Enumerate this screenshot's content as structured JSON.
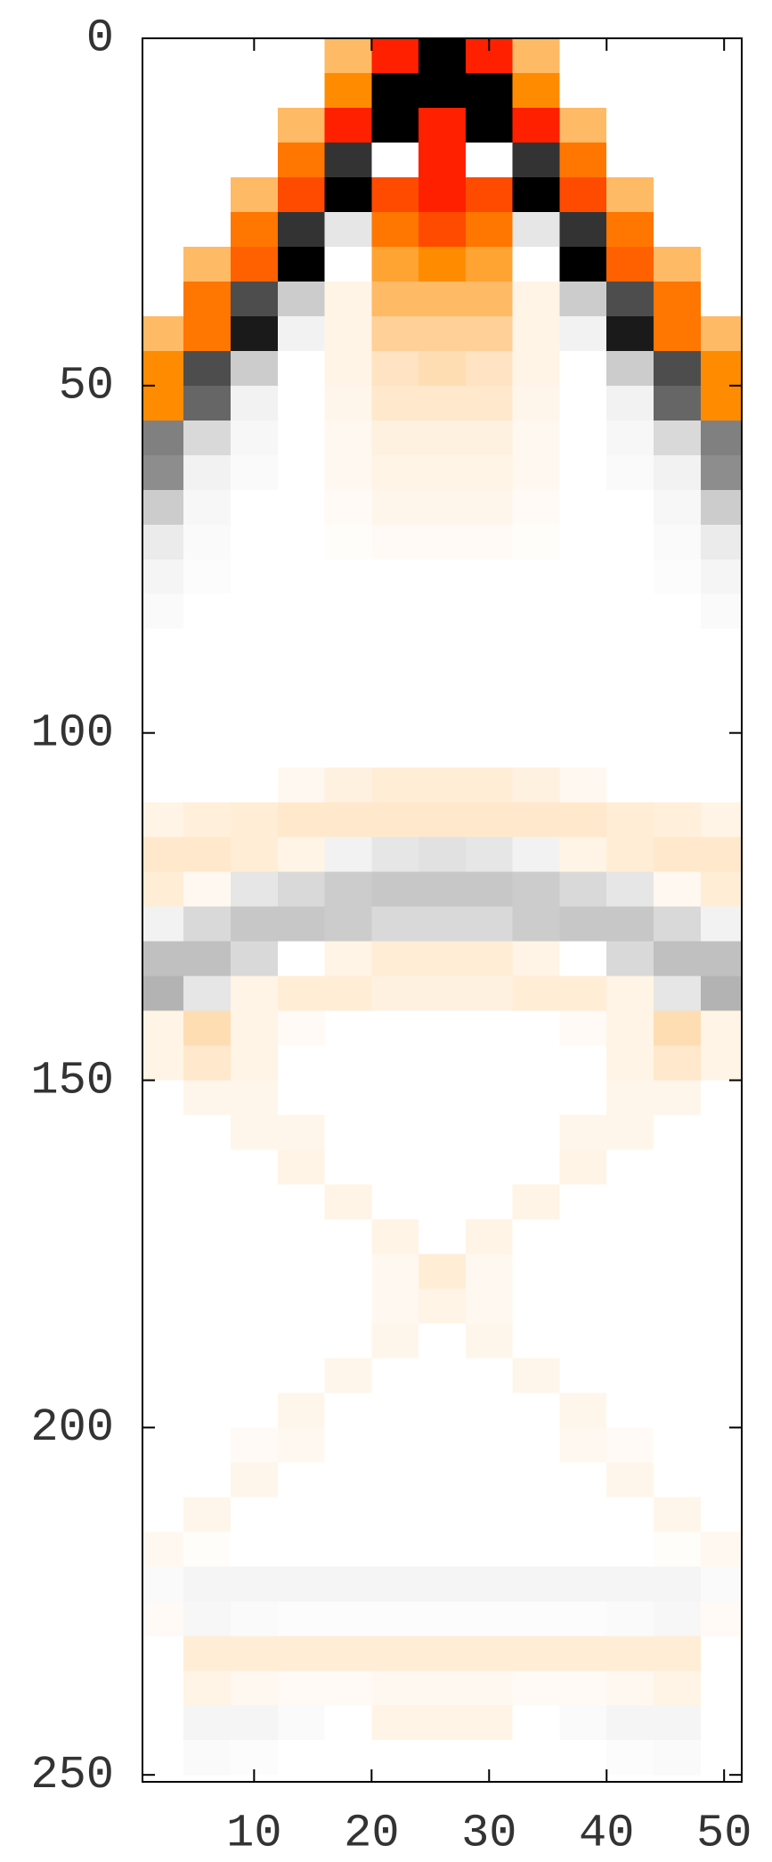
{
  "chart_data": {
    "type": "heatmap",
    "x": [
      2,
      6,
      10,
      14,
      18,
      22,
      26,
      30,
      34,
      38,
      42,
      46,
      50
    ],
    "y": [
      2.5,
      7.5,
      12.5,
      17.5,
      22.5,
      27.5,
      32.5,
      37.5,
      42.5,
      47.5,
      52.5,
      57.5,
      62.5,
      67.5,
      72.5,
      77.5,
      82.5,
      87.5,
      92.5,
      97.5,
      102.5,
      107.5,
      112.5,
      117.5,
      122.5,
      127.5,
      132.5,
      137.5,
      142.5,
      147.5,
      152.5,
      157.5,
      162.5,
      167.5,
      172.5,
      177.5,
      182.5,
      187.5,
      192.5,
      197.5,
      202.5,
      207.5,
      212.5,
      217.5,
      222.5,
      227.5,
      232.5,
      237.5,
      242.5,
      247.5
    ],
    "z": [
      [
        0,
        0,
        0,
        0,
        -0.3,
        -1,
        1,
        -1,
        -0.3,
        0,
        0,
        0,
        0
      ],
      [
        0,
        0,
        0,
        0,
        -0.5,
        1,
        1,
        1,
        -0.5,
        0,
        0,
        0,
        0
      ],
      [
        0,
        0,
        0,
        -0.3,
        -1,
        1,
        -1,
        1,
        -1,
        -0.3,
        0,
        0,
        0
      ],
      [
        0,
        0,
        0,
        -0.6,
        0.8,
        0,
        -1,
        0,
        0.8,
        -0.6,
        0,
        0,
        0
      ],
      [
        0,
        0,
        -0.3,
        -0.8,
        1,
        -0.8,
        -1,
        -0.8,
        1,
        -0.8,
        -0.3,
        0,
        0
      ],
      [
        0,
        0,
        -0.6,
        0.8,
        0.1,
        -0.6,
        -0.8,
        -0.6,
        0.1,
        0.8,
        -0.6,
        0,
        0
      ],
      [
        0,
        -0.3,
        -0.7,
        1,
        0,
        -0.4,
        -0.5,
        -0.4,
        0,
        1,
        -0.7,
        -0.3,
        0
      ],
      [
        0,
        -0.6,
        0.7,
        0.2,
        -0.05,
        -0.3,
        -0.3,
        -0.3,
        -0.05,
        0.2,
        0.7,
        -0.6,
        0
      ],
      [
        -0.3,
        -0.6,
        0.9,
        0.05,
        -0.05,
        -0.2,
        -0.2,
        -0.2,
        -0.05,
        0.05,
        0.9,
        -0.6,
        -0.3
      ],
      [
        -0.5,
        0.7,
        0.2,
        0,
        -0.05,
        -0.12,
        -0.15,
        -0.12,
        -0.05,
        0,
        0.2,
        0.7,
        -0.5
      ],
      [
        -0.5,
        0.6,
        0.05,
        0,
        -0.04,
        -0.1,
        -0.1,
        -0.1,
        -0.04,
        0,
        0.05,
        0.6,
        -0.5
      ],
      [
        0.5,
        0.15,
        0.03,
        0,
        -0.03,
        -0.06,
        -0.06,
        -0.06,
        -0.03,
        0,
        0.03,
        0.15,
        0.5
      ],
      [
        0.45,
        0.05,
        0.02,
        0,
        -0.03,
        -0.05,
        -0.05,
        -0.05,
        -0.03,
        0,
        0.02,
        0.05,
        0.45
      ],
      [
        0.2,
        0.03,
        0,
        0,
        -0.02,
        -0.04,
        -0.04,
        -0.04,
        -0.02,
        0,
        0,
        0.03,
        0.2
      ],
      [
        0.08,
        0.02,
        0,
        0,
        -0.01,
        -0.02,
        -0.02,
        -0.02,
        -0.01,
        0,
        0,
        0.02,
        0.08
      ],
      [
        0.04,
        0.01,
        0,
        0,
        0,
        0,
        0,
        0,
        0,
        0,
        0,
        0.01,
        0.04
      ],
      [
        0.02,
        0,
        0,
        0,
        0,
        0,
        0,
        0,
        0,
        0,
        0,
        0,
        0.02
      ],
      [
        0,
        0,
        0,
        0,
        0,
        0,
        0,
        0,
        0,
        0,
        0,
        0,
        0
      ],
      [
        0,
        0,
        0,
        0,
        0,
        0,
        0,
        0,
        0,
        0,
        0,
        0,
        0
      ],
      [
        0,
        0,
        0,
        0,
        0,
        0,
        0,
        0,
        0,
        0,
        0,
        0,
        0
      ],
      [
        0,
        0,
        0,
        0,
        0,
        0,
        0,
        0,
        0,
        0,
        0,
        0,
        0
      ],
      [
        0,
        0,
        0,
        -0.03,
        -0.06,
        -0.08,
        -0.08,
        -0.08,
        -0.06,
        -0.03,
        0,
        0,
        0
      ],
      [
        -0.05,
        -0.07,
        -0.08,
        -0.1,
        -0.1,
        -0.1,
        -0.1,
        -0.1,
        -0.1,
        -0.1,
        -0.08,
        -0.07,
        -0.05
      ],
      [
        -0.1,
        -0.1,
        -0.08,
        -0.05,
        0.05,
        0.1,
        0.12,
        0.1,
        0.05,
        -0.05,
        -0.08,
        -0.1,
        -0.1
      ],
      [
        -0.08,
        -0.03,
        0.1,
        0.15,
        0.2,
        0.22,
        0.22,
        0.22,
        0.2,
        0.15,
        0.1,
        -0.03,
        -0.08
      ],
      [
        0.05,
        0.15,
        0.22,
        0.22,
        0.2,
        0.15,
        0.15,
        0.15,
        0.2,
        0.22,
        0.22,
        0.15,
        0.05
      ],
      [
        0.25,
        0.25,
        0.15,
        0,
        -0.05,
        -0.08,
        -0.08,
        -0.08,
        -0.05,
        0,
        0.15,
        0.25,
        0.25
      ],
      [
        0.3,
        0.1,
        -0.05,
        -0.08,
        -0.08,
        -0.06,
        -0.06,
        -0.06,
        -0.08,
        -0.08,
        -0.05,
        0.1,
        0.3
      ],
      [
        -0.05,
        -0.15,
        -0.05,
        -0.02,
        0,
        0,
        0,
        0,
        0,
        -0.02,
        -0.05,
        -0.15,
        -0.05
      ],
      [
        -0.05,
        -0.1,
        -0.05,
        0,
        0,
        0,
        0,
        0,
        0,
        0,
        -0.05,
        -0.1,
        -0.05
      ],
      [
        0,
        -0.04,
        -0.04,
        0,
        0,
        0,
        0,
        0,
        0,
        0,
        -0.04,
        -0.04,
        0
      ],
      [
        0,
        0,
        -0.04,
        -0.04,
        0,
        0,
        0,
        0,
        0,
        -0.04,
        -0.04,
        0,
        0
      ],
      [
        0,
        0,
        0,
        -0.05,
        0,
        0,
        0,
        0,
        0,
        -0.05,
        0,
        0,
        0
      ],
      [
        0,
        0,
        0,
        0,
        -0.05,
        0,
        0,
        0,
        -0.05,
        0,
        0,
        0,
        0
      ],
      [
        0,
        0,
        0,
        0,
        0,
        -0.05,
        0,
        -0.05,
        0,
        0,
        0,
        0,
        0
      ],
      [
        0,
        0,
        0,
        0,
        0,
        -0.03,
        -0.08,
        -0.03,
        0,
        0,
        0,
        0,
        0
      ],
      [
        0,
        0,
        0,
        0,
        0,
        -0.03,
        -0.05,
        -0.03,
        0,
        0,
        0,
        0,
        0
      ],
      [
        0,
        0,
        0,
        0,
        0,
        -0.04,
        0,
        -0.04,
        0,
        0,
        0,
        0,
        0
      ],
      [
        0,
        0,
        0,
        0,
        -0.04,
        0,
        0,
        0,
        -0.04,
        0,
        0,
        0,
        0
      ],
      [
        0,
        0,
        0,
        -0.04,
        0,
        0,
        0,
        0,
        0,
        -0.04,
        0,
        0,
        0
      ],
      [
        0,
        0,
        -0.02,
        -0.03,
        0,
        0,
        0,
        0,
        0,
        -0.03,
        -0.02,
        0,
        0
      ],
      [
        0,
        0,
        -0.04,
        0,
        0,
        0,
        0,
        0,
        0,
        0,
        -0.04,
        0,
        0
      ],
      [
        0,
        -0.04,
        0,
        0,
        0,
        0,
        0,
        0,
        0,
        0,
        0,
        -0.04,
        0
      ],
      [
        -0.03,
        -0.01,
        0,
        0,
        0,
        0,
        0,
        0,
        0,
        0,
        0,
        -0.01,
        -0.03
      ],
      [
        0.02,
        0.04,
        0.04,
        0.04,
        0.04,
        0.04,
        0.04,
        0.04,
        0.04,
        0.04,
        0.04,
        0.04,
        0.02
      ],
      [
        -0.02,
        0.03,
        0.02,
        0.01,
        0.01,
        0.01,
        0.01,
        0.01,
        0.01,
        0.01,
        0.02,
        0.03,
        -0.02
      ],
      [
        0,
        -0.08,
        -0.08,
        -0.08,
        -0.08,
        -0.08,
        -0.08,
        -0.08,
        -0.08,
        -0.08,
        -0.08,
        -0.08,
        0
      ],
      [
        0,
        -0.05,
        -0.03,
        -0.02,
        -0.02,
        -0.03,
        -0.03,
        -0.03,
        -0.02,
        -0.02,
        -0.03,
        -0.05,
        0
      ],
      [
        0,
        0.04,
        0.04,
        0.02,
        0,
        -0.05,
        -0.05,
        -0.05,
        0,
        0.02,
        0.04,
        0.04,
        0
      ],
      [
        0,
        0.02,
        0.01,
        0,
        0,
        0,
        0,
        0,
        0,
        0,
        0.01,
        0.02,
        0
      ]
    ],
    "zlim": [
      -1,
      1
    ],
    "colormap": [
      "#ff2000",
      "#ff8c00",
      "#ffffff",
      "#808080",
      "#000000"
    ],
    "xlim": [
      0.5,
      51.5
    ],
    "ylim": [
      0,
      251
    ],
    "y_reversed": true,
    "xticks": [
      10,
      20,
      30,
      40,
      50
    ],
    "yticks": [
      0,
      50,
      100,
      150,
      200,
      250
    ]
  }
}
